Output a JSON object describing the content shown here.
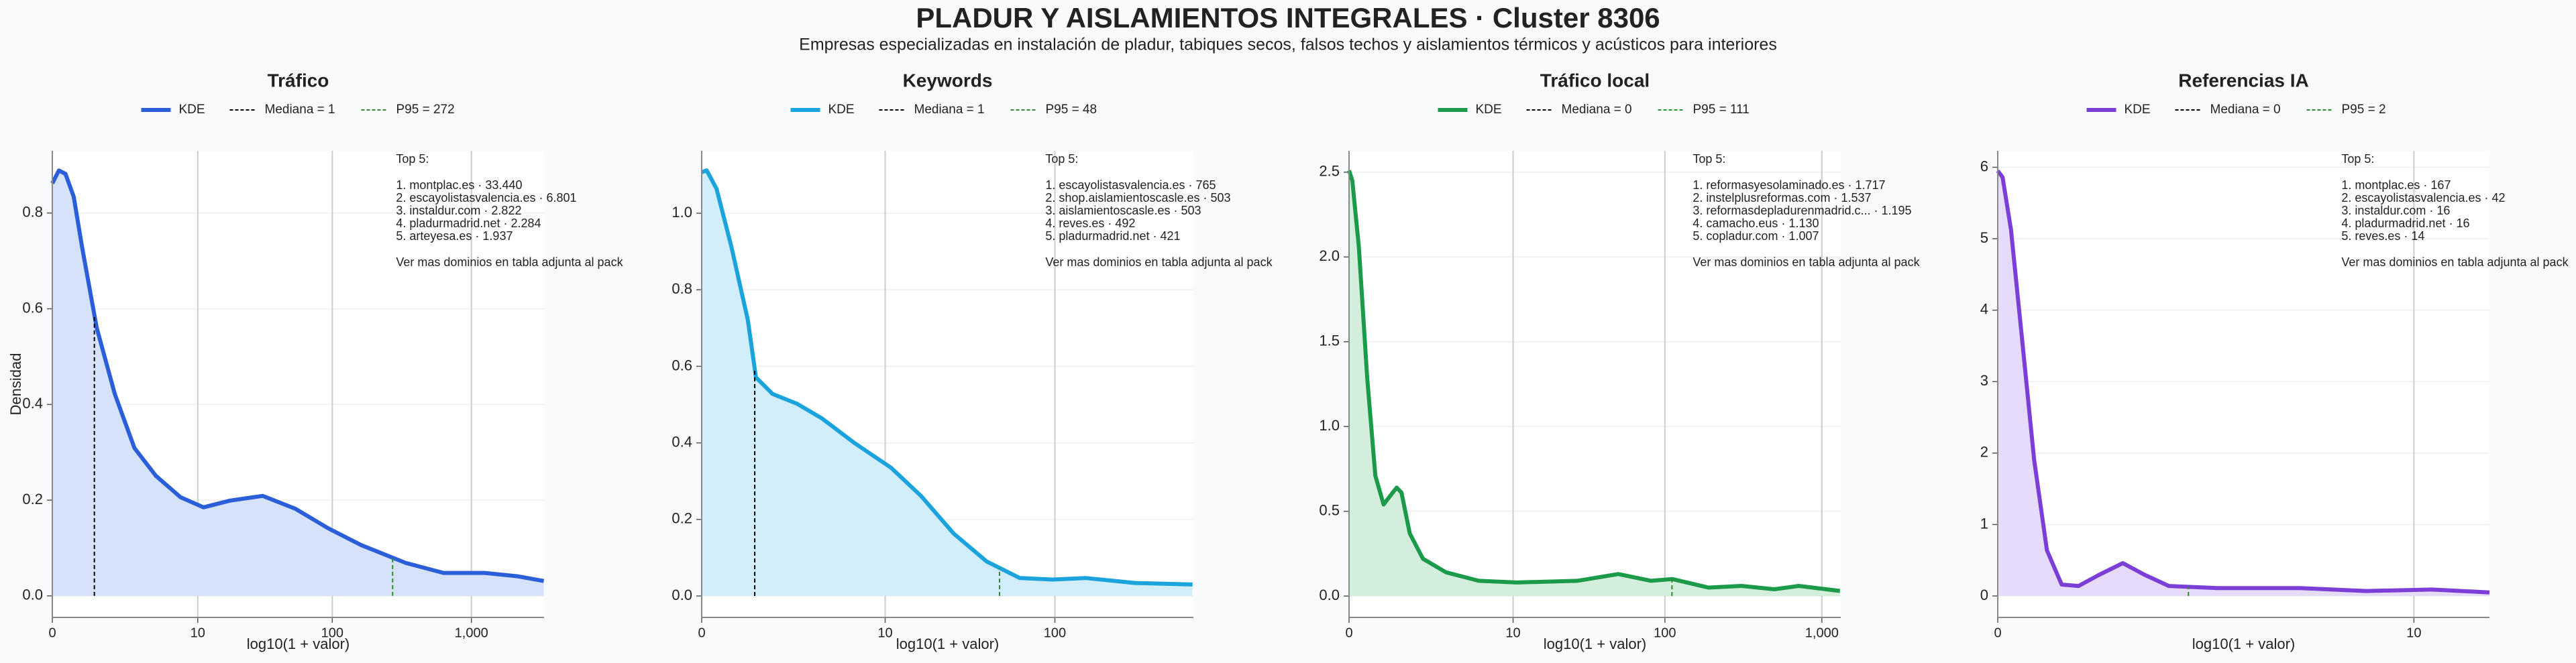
{
  "title": "PLADUR Y AISLAMIENTOS INTEGRALES · Cluster 8306",
  "subtitle": "Empresas especializadas en instalación de pladur, tabiques secos, falsos techos y aislamientos térmicos y acústicos para interiores",
  "chart_data": [
    {
      "type": "line",
      "title": "Tráfico",
      "xlabel": "log10(1 + valor)",
      "ylabel": "Densidad",
      "x": [
        0,
        0.047,
        0.094,
        0.153,
        0.212,
        0.318,
        0.447,
        0.588,
        0.741,
        0.918,
        1.082,
        1.27,
        1.506,
        1.741,
        1.976,
        2.212,
        2.529,
        2.8,
        3.094,
        3.329,
        3.518
      ],
      "series": [
        {
          "name": "KDE",
          "color": "#2b5fd9",
          "fill": "#d6e1fa",
          "values": [
            0.862,
            0.889,
            0.882,
            0.834,
            0.731,
            0.56,
            0.422,
            0.309,
            0.251,
            0.206,
            0.185,
            0.199,
            0.209,
            0.182,
            0.141,
            0.106,
            0.069,
            0.048,
            0.048,
            0.041,
            0.031
          ]
        }
      ],
      "reference_lines": [
        {
          "name": "Mediana = 1",
          "color": "#000000",
          "x": 0.301
        },
        {
          "name": "P95 = 272",
          "color": "#2e8b2e",
          "x": 2.436
        }
      ],
      "xlim": [
        0,
        3.52
      ],
      "ylim": [
        -0.045,
        0.93
      ],
      "xticks": [
        0,
        {
          "value": 1.041,
          "label": "10"
        },
        {
          "value": 2.004,
          "label": "100"
        },
        {
          "value": 3.0,
          "label": "1,000"
        }
      ],
      "yticks": [
        {
          "value": 0,
          "label": "0.0"
        },
        0.2,
        0.4,
        0.6,
        0.8
      ],
      "grid": true,
      "annotation": {
        "header": "Top 5:",
        "items": [
          "1. montplac.es · 33.440",
          "2. escayolistasvalencia.es · 6.801",
          "3. instaldur.com · 2.822",
          "4. pladurmadrid.net · 2.284",
          "5. arteyesa.es · 1.937"
        ],
        "footer": "Ver mas dominios en tabla adjunta al pack"
      }
    },
    {
      "type": "line",
      "title": "Keywords",
      "xlabel": "log10(1 + valor)",
      "x": [
        0,
        0.028,
        0.084,
        0.168,
        0.262,
        0.308,
        0.402,
        0.542,
        0.682,
        0.869,
        1.075,
        1.243,
        1.43,
        1.617,
        1.804,
        1.991,
        2.178,
        2.458,
        2.785
      ],
      "series": [
        {
          "name": "KDE",
          "color": "#1ba3dd",
          "fill": "#d2eefa",
          "values": [
            1.107,
            1.112,
            1.064,
            0.914,
            0.721,
            0.571,
            0.528,
            0.502,
            0.464,
            0.399,
            0.335,
            0.262,
            0.163,
            0.09,
            0.047,
            0.043,
            0.047,
            0.034,
            0.03
          ]
        }
      ],
      "reference_lines": [
        {
          "name": "Mediana = 1",
          "color": "#000000",
          "x": 0.301
        },
        {
          "name": "P95 = 48",
          "color": "#2e8b2e",
          "x": 1.69
        }
      ],
      "xlim": [
        0,
        2.79
      ],
      "ylim": [
        -0.056,
        1.163
      ],
      "xticks": [
        0,
        {
          "value": 1.041,
          "label": "10"
        },
        {
          "value": 2.004,
          "label": "100"
        }
      ],
      "yticks": [
        {
          "value": 0,
          "label": "0.0"
        },
        0.2,
        0.4,
        0.6,
        0.8,
        {
          "value": 1,
          "label": "1.0"
        }
      ],
      "grid": true,
      "annotation": {
        "header": "Top 5:",
        "items": [
          "1. escayolistasvalencia.es · 765",
          "2. shop.aislamientoscasle.es · 503",
          "3. aislamientoscasle.es · 503",
          "4. reves.es · 492",
          "5. pladurmadrid.net · 421"
        ],
        "footer": "Ver mas dominios en tabla adjunta al pack"
      }
    },
    {
      "type": "line",
      "title": "Tráfico local",
      "xlabel": "log10(1 + valor)",
      "x": [
        0,
        0.021,
        0.062,
        0.115,
        0.167,
        0.219,
        0.26,
        0.302,
        0.333,
        0.385,
        0.469,
        0.615,
        0.823,
        1.063,
        1.448,
        1.708,
        1.917,
        2.052,
        2.281,
        2.49,
        2.698,
        2.854,
        3.115
      ],
      "series": [
        {
          "name": "KDE",
          "color": "#1b9a4a",
          "fill": "#d3eedb",
          "values": [
            2.51,
            2.45,
            2.06,
            1.29,
            0.71,
            0.54,
            0.59,
            0.64,
            0.61,
            0.37,
            0.22,
            0.14,
            0.09,
            0.08,
            0.09,
            0.13,
            0.09,
            0.1,
            0.05,
            0.06,
            0.04,
            0.06,
            0.03
          ]
        }
      ],
      "reference_lines": [
        {
          "name": "Mediana = 0",
          "color": "#000000",
          "x": 0
        },
        {
          "name": "P95 = 111",
          "color": "#2e8b2e",
          "x": 2.049
        }
      ],
      "xlim": [
        0,
        3.12
      ],
      "ylim": [
        -0.126,
        2.626
      ],
      "xticks": [
        0,
        {
          "value": 1.041,
          "label": "10"
        },
        {
          "value": 2.004,
          "label": "100"
        },
        {
          "value": 3.0,
          "label": "1,000"
        }
      ],
      "yticks": [
        {
          "value": 0,
          "label": "0.0"
        },
        0.5,
        {
          "value": 1,
          "label": "1.0"
        },
        1.5,
        {
          "value": 2,
          "label": "2.0"
        },
        2.5
      ],
      "grid": true,
      "annotation": {
        "header": "Top 5:",
        "items": [
          "1. reformasyesolaminado.es · 1.717",
          "2. instelplusreformas.com · 1.537",
          "3. reformasdepladurenmadrid.c... · 1.195",
          "4. camacho.eus · 1.130",
          "5. copladur.com · 1.007"
        ],
        "footer": "Ver mas dominios en tabla adjunta al pack"
      }
    },
    {
      "type": "line",
      "title": "Referencias IA",
      "xlabel": "log10(1 + valor)",
      "x": [
        0,
        0.012,
        0.033,
        0.058,
        0.091,
        0.123,
        0.16,
        0.202,
        0.255,
        0.313,
        0.366,
        0.428,
        0.551,
        0.757,
        0.922,
        1.086,
        1.23
      ],
      "series": [
        {
          "name": "KDE",
          "color": "#7b3fd8",
          "fill": "#e6dbf8",
          "values": [
            5.95,
            5.86,
            5.13,
            3.75,
            1.91,
            0.64,
            0.16,
            0.14,
            0.3,
            0.46,
            0.3,
            0.14,
            0.11,
            0.11,
            0.07,
            0.09,
            0.05
          ]
        }
      ],
      "reference_lines": [
        {
          "name": "Mediana = 0",
          "color": "#000000",
          "x": 0
        },
        {
          "name": "P95 = 2",
          "color": "#2e8b2e",
          "x": 0.477
        }
      ],
      "xlim": [
        0,
        1.23
      ],
      "ylim": [
        -0.3,
        6.23
      ],
      "xticks": [
        0,
        {
          "value": 1.041,
          "label": "10"
        }
      ],
      "yticks": [
        0,
        1,
        2,
        3,
        4,
        5,
        6
      ],
      "grid": true,
      "annotation": {
        "header": "Top 5:",
        "items": [
          "1. montplac.es · 167",
          "2. escayolistasvalencia.es · 42",
          "3. instaldur.com · 16",
          "4. pladurmadrid.net · 16",
          "5. reves.es · 14"
        ],
        "footer": "Ver mas dominios en tabla adjunta al pack"
      }
    }
  ]
}
